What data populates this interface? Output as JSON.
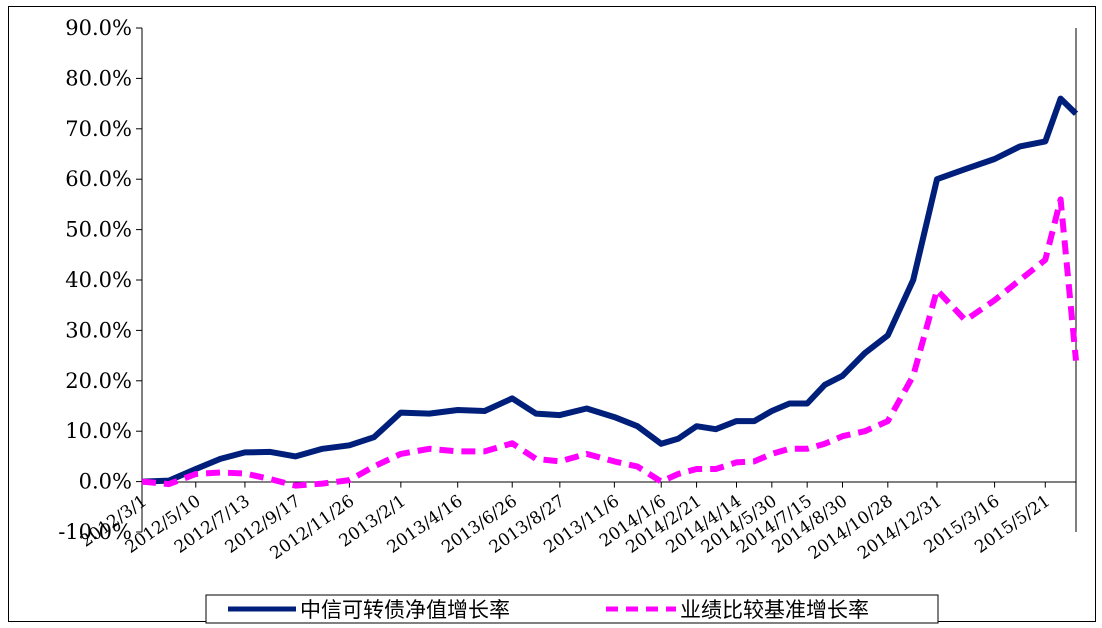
{
  "chart_data": {
    "type": "line",
    "title": "",
    "xlabel": "",
    "ylabel": "",
    "ylim": [
      -10.0,
      90.0
    ],
    "yticks": [
      -10.0,
      0.0,
      10.0,
      20.0,
      30.0,
      40.0,
      50.0,
      60.0,
      70.0,
      80.0,
      90.0
    ],
    "ytick_labels": [
      "-10.0%",
      "0.0%",
      "10.0%",
      "20.0%",
      "30.0%",
      "40.0%",
      "50.0%",
      "60.0%",
      "70.0%",
      "80.0%",
      "90.0%"
    ],
    "x_tick_labels": [
      "2012/3/1",
      "2012/5/10",
      "2012/7/13",
      "2012/9/17",
      "2012/11/26",
      "2013/2/1",
      "2013/4/16",
      "2013/6/26",
      "2013/8/27",
      "2013/11/6",
      "2014/1/6",
      "2014/2/21",
      "2014/4/14",
      "2014/5/30",
      "2014/7/15",
      "2014/8/30",
      "2014/10/28",
      "2014/12/31",
      "2015/3/16",
      "2015/5/21"
    ],
    "grid": false,
    "legend_position": "bottom",
    "x": [
      "2012/3/1",
      "2012/4/5",
      "2012/5/10",
      "2012/6/11",
      "2012/7/13",
      "2012/8/15",
      "2012/9/17",
      "2012/10/22",
      "2012/11/26",
      "2012/12/28",
      "2013/2/1",
      "2013/3/10",
      "2013/4/16",
      "2013/5/21",
      "2013/6/26",
      "2013/7/27",
      "2013/8/27",
      "2013/10/1",
      "2013/11/6",
      "2013/12/6",
      "2014/1/6",
      "2014/1/28",
      "2014/2/21",
      "2014/3/18",
      "2014/4/14",
      "2014/5/7",
      "2014/5/30",
      "2014/6/22",
      "2014/7/15",
      "2014/8/7",
      "2014/8/30",
      "2014/9/28",
      "2014/10/28",
      "2014/11/30",
      "2014/12/31",
      "2015/2/6",
      "2015/3/16",
      "2015/4/18",
      "2015/5/21",
      "2015/6/10",
      "2015/6/30"
    ],
    "series": [
      {
        "name": "中信可转债净值增长率",
        "color": "#001f7a",
        "style": "solid",
        "values": [
          0.0,
          0.2,
          2.5,
          4.5,
          5.8,
          5.9,
          5.0,
          6.5,
          7.2,
          8.8,
          13.7,
          13.5,
          14.2,
          14.0,
          16.5,
          13.5,
          13.2,
          14.5,
          12.8,
          11.0,
          7.5,
          8.5,
          11.0,
          10.4,
          12.0,
          12.0,
          14.0,
          15.5,
          15.5,
          19.2,
          21.0,
          25.5,
          29.0,
          40.0,
          60.0,
          62.0,
          64.0,
          66.5,
          67.5,
          76.0,
          73.0
        ]
      },
      {
        "name": "业绩比较基准增长率",
        "color": "#ff00ff",
        "style": "dashed",
        "values": [
          0.0,
          -0.5,
          1.5,
          1.8,
          1.6,
          0.5,
          -0.8,
          -0.4,
          0.3,
          3.0,
          5.5,
          6.5,
          6.0,
          6.0,
          7.6,
          4.5,
          4.0,
          5.5,
          4.0,
          3.0,
          0.0,
          1.5,
          2.5,
          2.5,
          3.8,
          4.0,
          5.5,
          6.5,
          6.5,
          7.5,
          9.0,
          10.0,
          12.0,
          21.0,
          38.0,
          32.0,
          36.0,
          40.0,
          44.0,
          56.0,
          24.0
        ]
      }
    ]
  }
}
